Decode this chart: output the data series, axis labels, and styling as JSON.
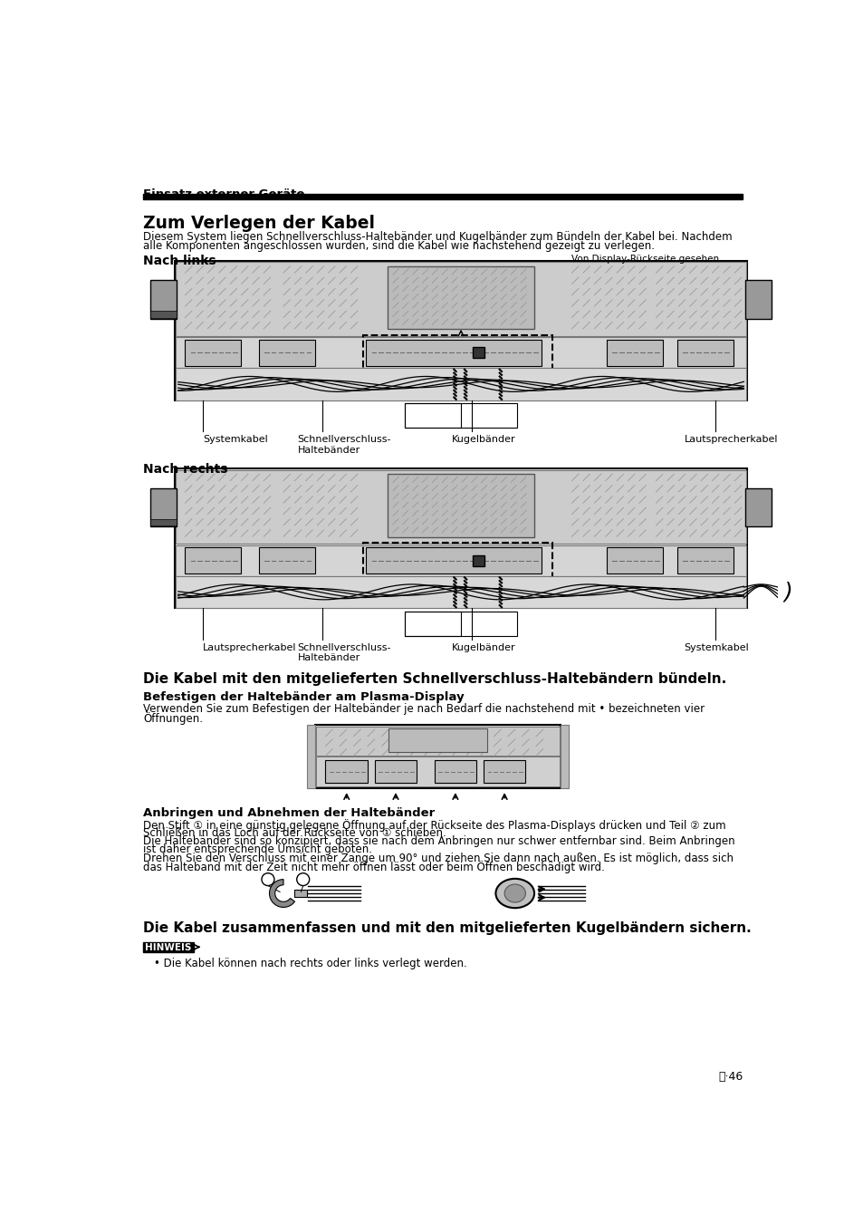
{
  "page_title": "Einsatz externer Geräte",
  "section1_title": "Zum Verlegen der Kabel",
  "section1_body1": "Diesem System liegen Schnellverschluss-Haltebänder und Kugelbänder zum Bündeln der Kabel bei. Nachdem",
  "section1_body2": "alle Komponenten angeschlossen wurden, sind die Kabel wie nachstehend gezeigt zu verlegen.",
  "nach_links": "Nach links",
  "von_display": "Von Display-Rückseite gesehen",
  "lbl_links_1": "Systemkabel",
  "lbl_links_2": "Schnellverschluss-\nHaltebänder",
  "lbl_links_3": "Kugelbänder",
  "lbl_links_4": "Lautsprecherkabel",
  "nach_rechts": "Nach rechts",
  "lbl_rechts_1": "Lautsprecherkabel",
  "lbl_rechts_2": "Schnellverschluss-\nHaltebänder",
  "lbl_rechts_3": "Kugelbänder",
  "lbl_rechts_4": "Systemkabel",
  "section2_title": "Die Kabel mit den mitgelieferten Schnellverschluss-Haltebändern bündeln.",
  "sub2a_title": "Befestigen der Haltebänder am Plasma-Display",
  "sub2a_body1": "Verwenden Sie zum Befestigen der Haltebänder je nach Bedarf die nachstehend mit • bezeichneten vier",
  "sub2a_body2": "Öffnungen.",
  "sub2b_title": "Anbringen und Abnehmen der Haltebänder",
  "sub2b_body1": "Den Stift ① in eine günstig gelegene Öffnung auf der Rückseite des Plasma-Displays drücken und Teil ② zum",
  "sub2b_body2": "Schließen in das Loch auf der Rückseite von ① schieben.",
  "sub2b_body3": "Die Haltebänder sind so konzipiert, dass sie nach dem Anbringen nur schwer entfernbar sind. Beim Anbringen",
  "sub2b_body4": "ist daher entsprechende Umsicht geboten.",
  "sub2b_body5": "Drehen Sie den Verschluss mit einer Zange um 90° und ziehen Sie dann nach außen. Es ist möglich, dass sich",
  "sub2b_body6": "das Halteband mit der Zeit nicht mehr öffnen lässt oder beim Öffnen beschädigt wird.",
  "section3_title": "Die Kabel zusammenfassen und mit den mitgelieferten Kugelbändern sichern.",
  "hinweis_title": "HINWEIS",
  "hinweis_body": "• Die Kabel können nach rechts oder links verlegt werden.",
  "page_number": "ⓓ·46",
  "bg_color": "#ffffff"
}
